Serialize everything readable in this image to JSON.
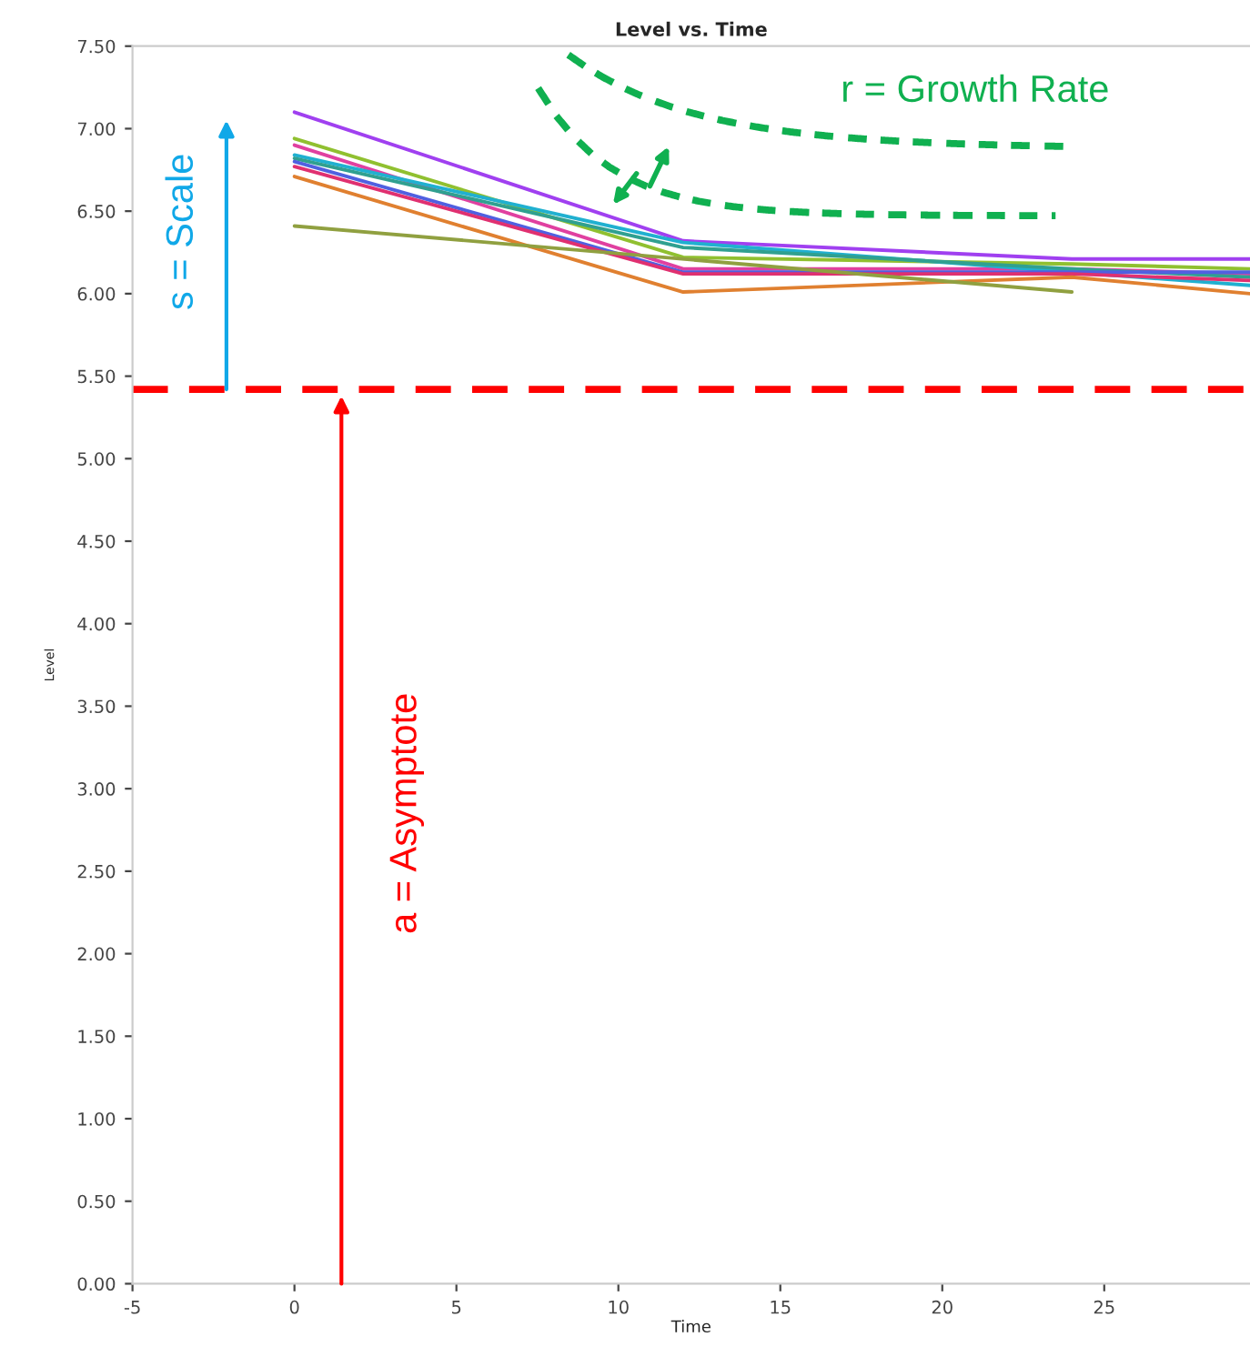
{
  "chart_data": {
    "type": "line",
    "title": "Level vs. Time",
    "xlabel": "Time",
    "ylabel": "Level",
    "x": [
      0,
      12,
      24,
      29.5
    ],
    "series": [
      {
        "color": "#a040f0",
        "values": [
          7.1,
          6.32,
          6.21,
          6.21
        ]
      },
      {
        "color": "#90c030",
        "values": [
          6.94,
          6.22,
          6.18,
          6.15
        ]
      },
      {
        "color": "#e040a0",
        "values": [
          6.9,
          6.15,
          6.15,
          6.12
        ]
      },
      {
        "color": "#20b0d0",
        "values": [
          6.84,
          6.31,
          6.13,
          6.05
        ]
      },
      {
        "color": "#30a090",
        "values": [
          6.82,
          6.28,
          6.15,
          6.1
        ]
      },
      {
        "color": "#5060e0",
        "values": [
          6.8,
          6.13,
          6.13,
          6.13
        ]
      },
      {
        "color": "#e03070",
        "values": [
          6.77,
          6.12,
          6.12,
          6.08
        ]
      },
      {
        "color": "#e08030",
        "values": [
          6.71,
          6.01,
          6.1,
          6.0
        ]
      },
      {
        "color": "#90a040",
        "x": [
          0,
          24
        ],
        "values": [
          6.41,
          6.01
        ]
      }
    ],
    "xlim": [
      -5,
      29.5
    ],
    "xticks": [
      -5,
      0,
      5,
      10,
      15,
      20,
      25
    ],
    "ylim": [
      0,
      7.5
    ],
    "yticks": [
      {
        "value": 0,
        "label": "0.00"
      },
      {
        "value": 0.5,
        "label": "0.50"
      },
      {
        "value": 1,
        "label": "1.00"
      },
      {
        "value": 1.5,
        "label": "1.50"
      },
      {
        "value": 2,
        "label": "2.00"
      },
      {
        "value": 2.5,
        "label": "2.50"
      },
      {
        "value": 3,
        "label": "3.00"
      },
      {
        "value": 3.5,
        "label": "3.50"
      },
      {
        "value": 4,
        "label": "4.00"
      },
      {
        "value": 4.5,
        "label": "4.50"
      },
      {
        "value": 5,
        "label": "5.00"
      },
      {
        "value": 5.5,
        "label": "5.50"
      },
      {
        "value": 6,
        "label": "6.00"
      },
      {
        "value": 6.5,
        "label": "6.50"
      },
      {
        "value": 7,
        "label": "7.00"
      },
      {
        "value": 7.5,
        "label": "7.50"
      }
    ],
    "ref_lines": [
      {
        "axis": "y",
        "value": 5.42,
        "color": "#ff0000",
        "line_style": "dashed"
      }
    ],
    "annotations": [
      "r = Growth Rate",
      "s = Scale",
      "a = Asymptote"
    ],
    "grid": false,
    "legend": false,
    "marker": "none",
    "line_style": "solid"
  }
}
